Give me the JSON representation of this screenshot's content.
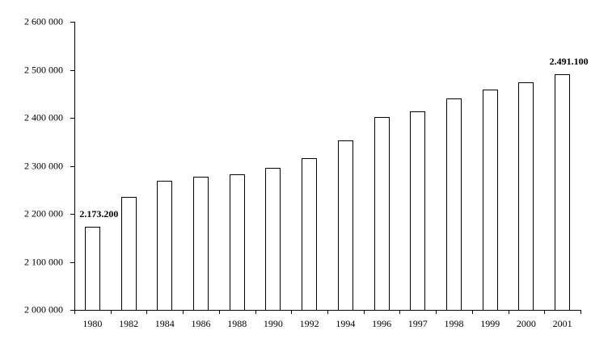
{
  "chart_data": {
    "type": "bar",
    "title": "",
    "xlabel": "",
    "ylabel": "",
    "categories": [
      "1980",
      "1982",
      "1984",
      "1986",
      "1988",
      "1990",
      "1992",
      "1994",
      "1996",
      "1997",
      "1998",
      "1999",
      "2000",
      "2001"
    ],
    "values": [
      2173200,
      2236000,
      2269000,
      2277000,
      2283000,
      2296000,
      2316000,
      2353000,
      2402000,
      2414000,
      2441000,
      2458000,
      2474000,
      2491100
    ],
    "ylim": [
      2000000,
      2600000
    ],
    "ytick_step": 100000,
    "ytick_labels": [
      "2 000 000",
      "2 100 000",
      "2 200 000",
      "2 300 000",
      "2 400 000",
      "2 500 000",
      "2 600 000"
    ],
    "annotations": [
      {
        "category": "1980",
        "text": "2.173.200"
      },
      {
        "category": "2001",
        "text": "2.491.100"
      }
    ],
    "grid": false,
    "legend": false,
    "background": "#ffffff",
    "bar_fill": "#ffffff",
    "bar_border": "#000000",
    "axis_color": "#000000"
  }
}
